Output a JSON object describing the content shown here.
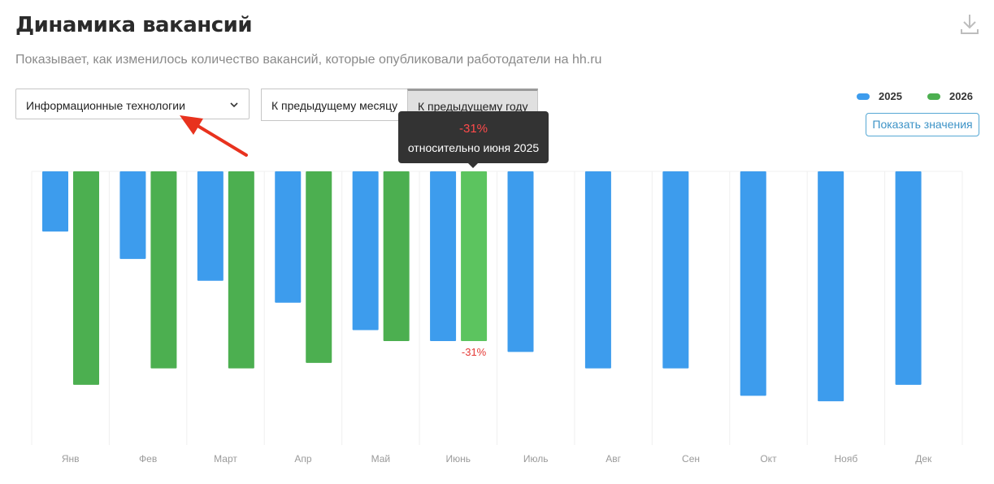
{
  "header": {
    "title": "Динамика вакансий",
    "subtitle": "Показывает, как изменилось количество вакансий, которые опубликовали работодатели на hh.ru"
  },
  "controls": {
    "industry_value": "Информационные технологии",
    "compare_month_label": "К предыдущему месяцу",
    "compare_year_label": "К предыдущему году",
    "selected_compare": "year",
    "show_values_label": "Показать значения"
  },
  "tooltip": {
    "value": "-31%",
    "description": "относительно июня 2025"
  },
  "icons": {
    "download": "download-icon",
    "dropdown": "chevron-down-icon",
    "annotation": "red-arrow-annotation"
  },
  "colors": {
    "series_2025": "#3d9ced",
    "series_2026": "#4caf50",
    "series_2026_highlight": "#5cc45f",
    "negative_label": "#e53935",
    "tooltip_bg": "#333333",
    "arrow": "#e8321e"
  },
  "chart_data": {
    "type": "bar",
    "orientation": "vertical",
    "categories": [
      "Янв",
      "Фев",
      "Март",
      "Апр",
      "Май",
      "Июнь",
      "Июль",
      "Авг",
      "Сен",
      "Окт",
      "Нояб",
      "Дек"
    ],
    "series": [
      {
        "name": "2025",
        "values": [
          -11,
          -16,
          -20,
          -24,
          -29,
          -31,
          -33,
          -36,
          -36,
          -41,
          -42,
          -39
        ]
      },
      {
        "name": "2026",
        "values": [
          -39,
          -36,
          -36,
          -35,
          -31,
          -31,
          null,
          null,
          null,
          null,
          null,
          null
        ]
      }
    ],
    "ylim": [
      -50,
      0
    ],
    "grid": "vertical",
    "legend": "top-right",
    "highlight": {
      "series": "2026",
      "category": "Июнь",
      "label": "-31%"
    }
  }
}
